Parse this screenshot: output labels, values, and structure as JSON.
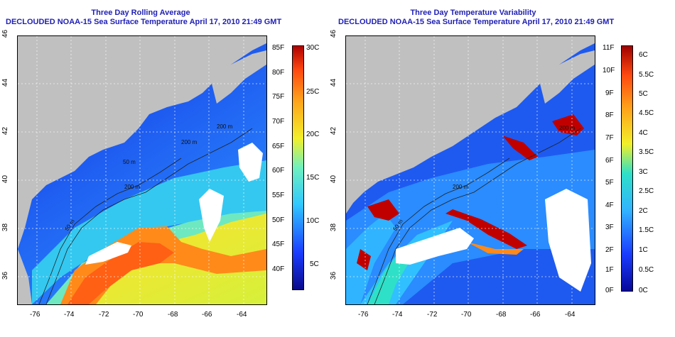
{
  "left": {
    "title": "Three Day Rolling Average",
    "subtitle": "DECLOUDED NOAA-15 Sea Surface Temperature April 17, 2010 21:49 GMT",
    "lat_ticks": [
      "46",
      "44",
      "42",
      "40",
      "38",
      "36"
    ],
    "lon_ticks": [
      "-76",
      "-74",
      "-72",
      "-70",
      "-68",
      "-66",
      "-64"
    ],
    "colorbar_f": [
      "85F",
      "80F",
      "75F",
      "70F",
      "65F",
      "60F",
      "55F",
      "50F",
      "45F",
      "40F"
    ],
    "colorbar_c": [
      "30C",
      "25C",
      "20C",
      "15C",
      "10C",
      "5C"
    ],
    "isobath_labels": [
      "200 m",
      "200 m",
      "200 m",
      "50 m",
      "50 m"
    ],
    "colors": [
      "#1a1ad4",
      "#1e78ff",
      "#37d6ee",
      "#f0ee2a",
      "#ff8a1a",
      "#ff5a12",
      "#c00000"
    ]
  },
  "right": {
    "title": "Three Day Temperature Variability",
    "subtitle": "DECLOUDED NOAA-15 Sea Surface Temperature April 17, 2010 21:49 GMT",
    "lat_ticks": [
      "46",
      "44",
      "42",
      "40",
      "38",
      "36"
    ],
    "lon_ticks": [
      "-76",
      "-74",
      "-72",
      "-70",
      "-68",
      "-66",
      "-64"
    ],
    "colorbar_f": [
      "11F",
      "10F",
      "9F",
      "8F",
      "7F",
      "6F",
      "5F",
      "4F",
      "3F",
      "2F",
      "1F",
      "0F"
    ],
    "colorbar_c": [
      "6C",
      "5.5C",
      "5C",
      "4.5C",
      "4C",
      "3.5C",
      "3C",
      "2.5C",
      "2C",
      "1.5C",
      "1C",
      "0.5C",
      "0C"
    ],
    "isobath_labels": [
      "200 m",
      "200 m",
      "50 m"
    ],
    "colors": [
      "#0a1aa8",
      "#1e60ff",
      "#31b4ff",
      "#2fe0c8",
      "#f2f02a",
      "#ff8a1a",
      "#c00000"
    ]
  }
}
